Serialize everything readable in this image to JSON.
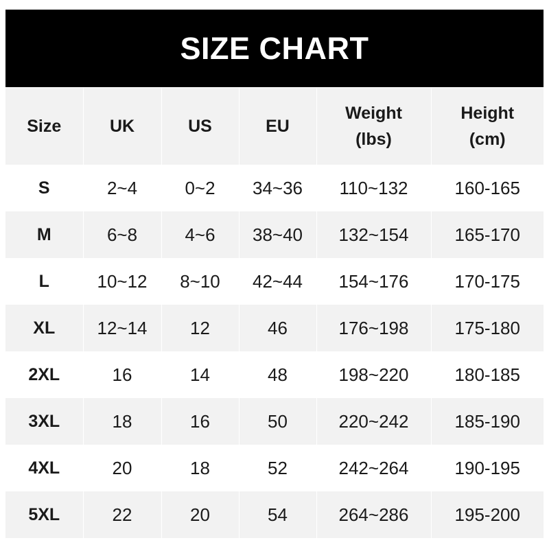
{
  "title": "SIZE CHART",
  "headers": [
    "Size",
    "UK",
    "US",
    "EU",
    "Weight\n(lbs)",
    "Height\n(cm)"
  ],
  "header_lines": {
    "weight": [
      "Weight",
      "(lbs)"
    ],
    "height": [
      "Height",
      "(cm)"
    ]
  },
  "rows": [
    [
      "S",
      "2~4",
      "0~2",
      "34~36",
      "110~132",
      "160-165"
    ],
    [
      "M",
      "6~8",
      "4~6",
      "38~40",
      "132~154",
      "165-170"
    ],
    [
      "L",
      "10~12",
      "8~10",
      "42~44",
      "154~176",
      "170-175"
    ],
    [
      "XL",
      "12~14",
      "12",
      "46",
      "176~198",
      "175-180"
    ],
    [
      "2XL",
      "16",
      "14",
      "48",
      "198~220",
      "180-185"
    ],
    [
      "3XL",
      "18",
      "16",
      "50",
      "220~242",
      "185-190"
    ],
    [
      "4XL",
      "20",
      "18",
      "52",
      "242~264",
      "190-195"
    ],
    [
      "5XL",
      "22",
      "20",
      "54",
      "264~286",
      "195-200"
    ]
  ],
  "colors": {
    "header_bg": "#000000",
    "stripe": "#f2f2f2",
    "text": "#1a1a1a"
  }
}
